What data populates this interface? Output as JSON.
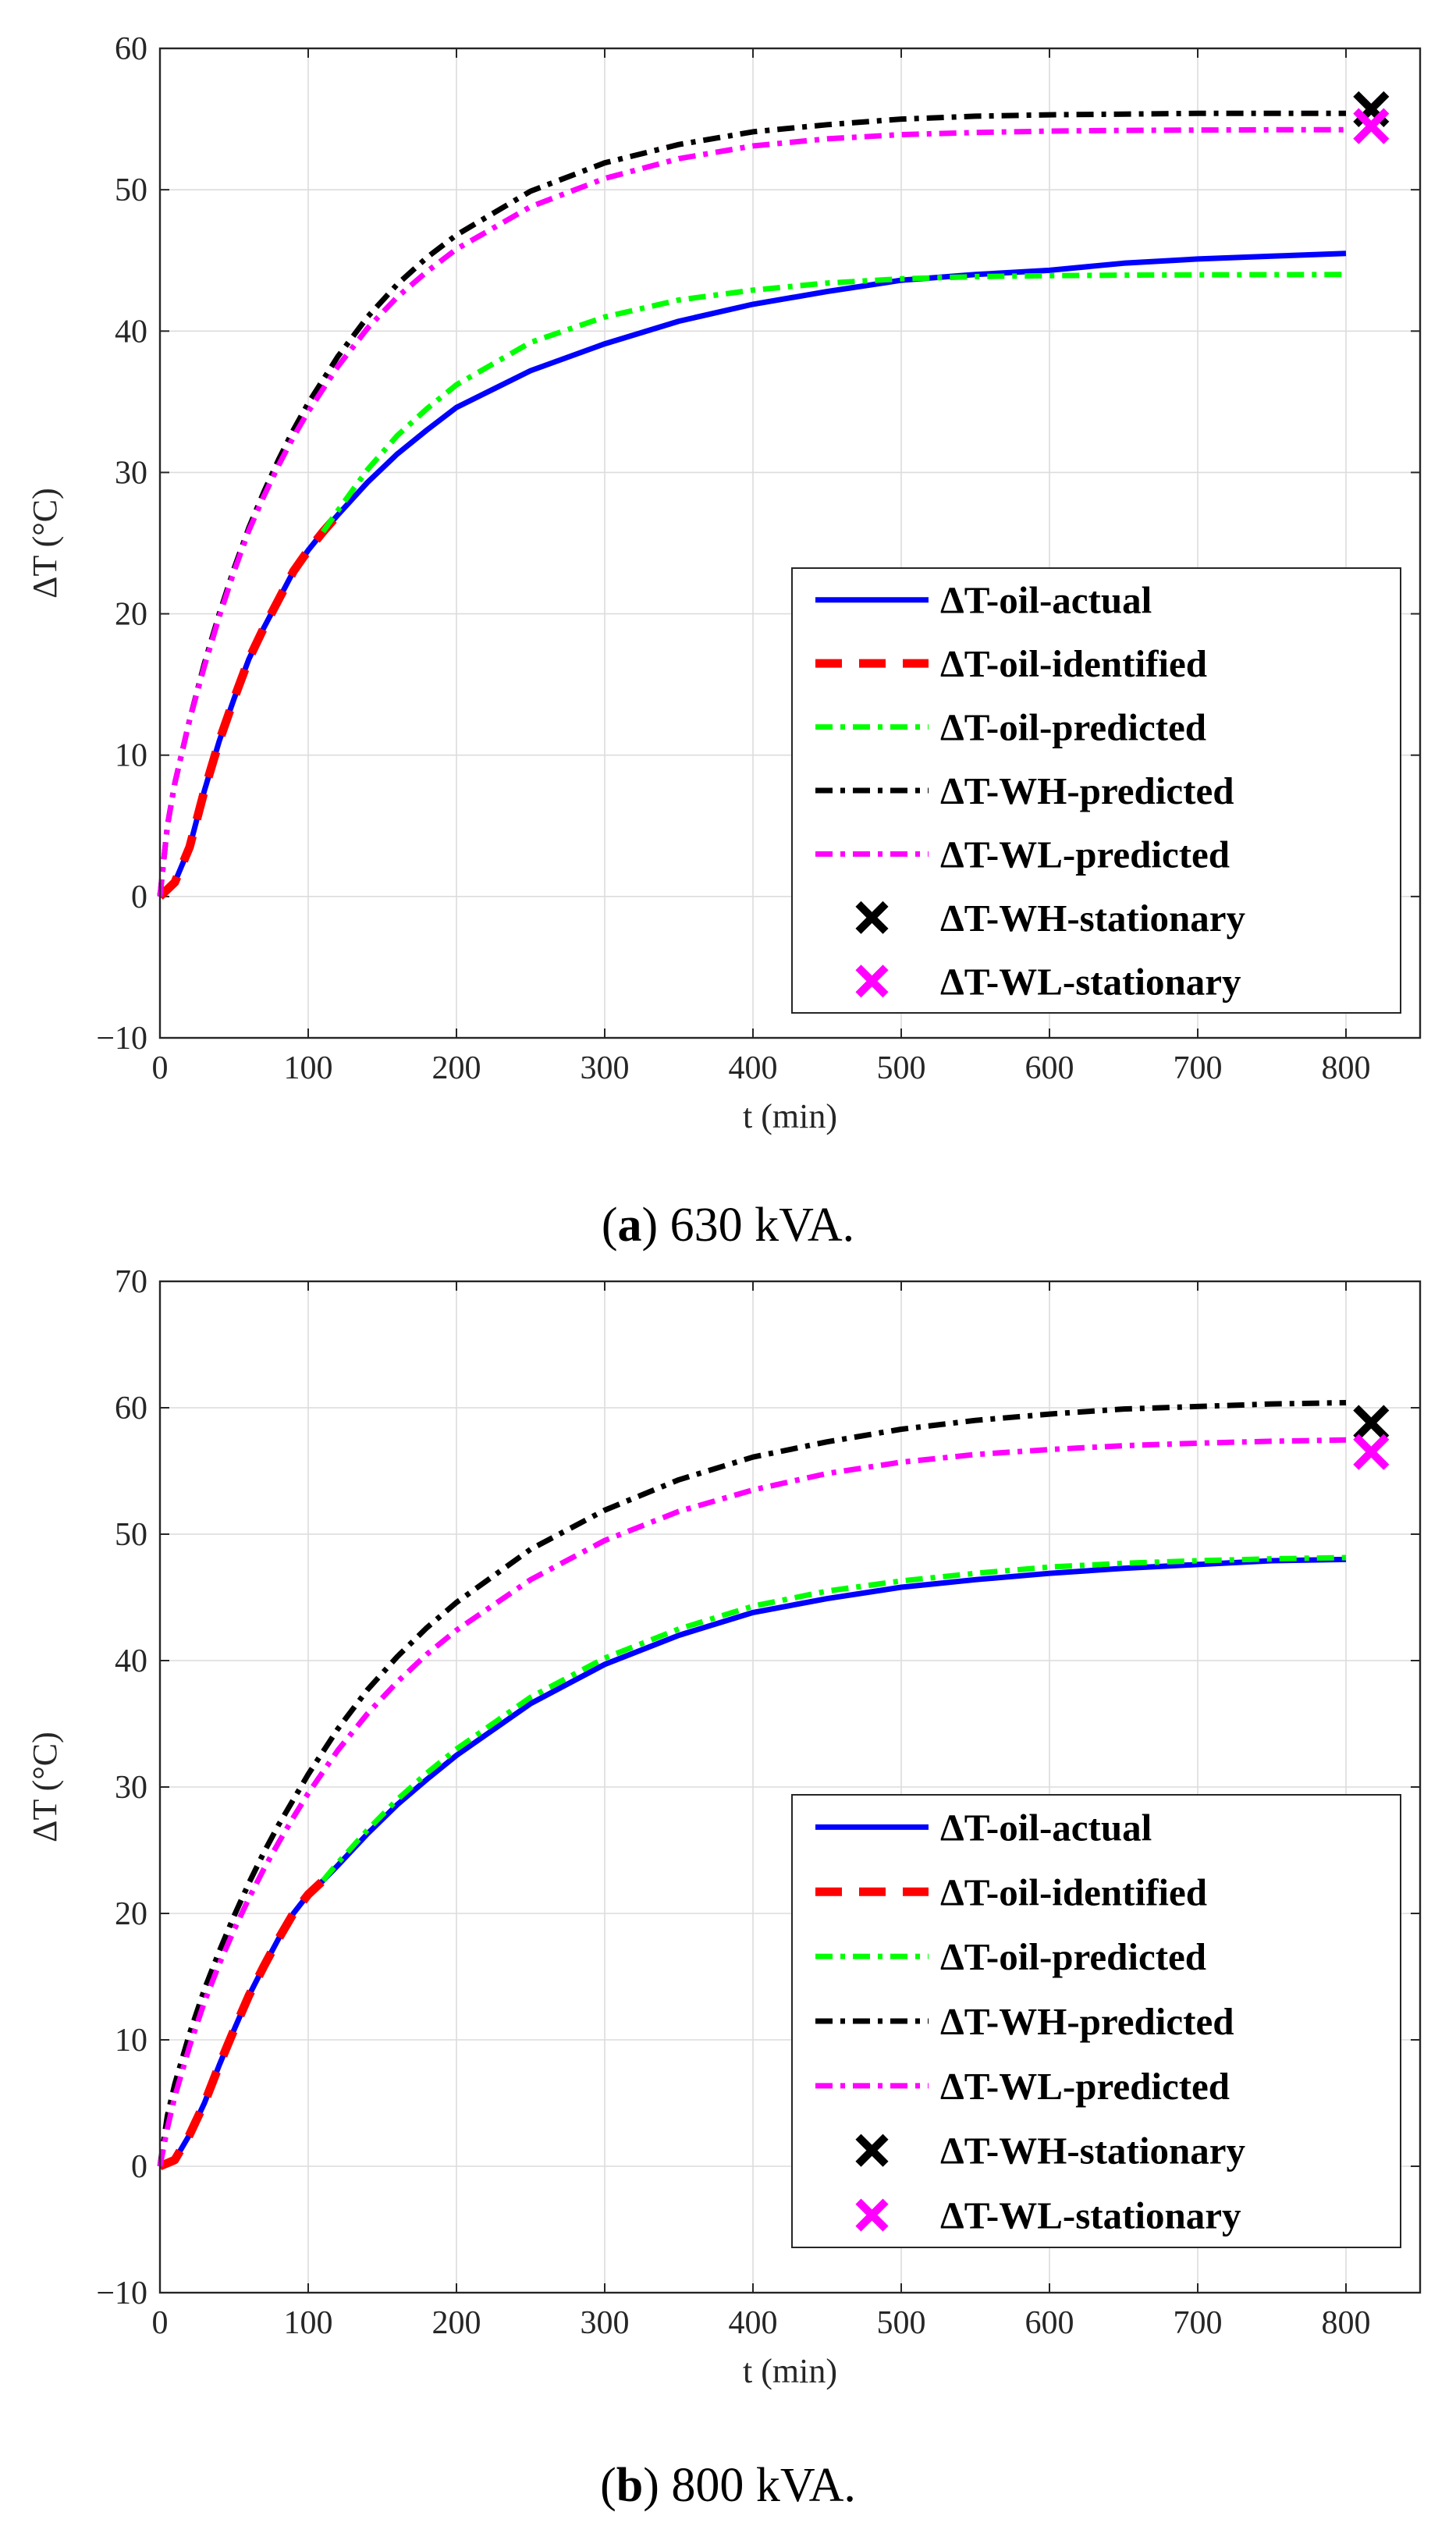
{
  "chart_data": [
    {
      "type": "line",
      "caption_letter": "a",
      "caption_text": "630 kVA.",
      "xlabel": "t (min)",
      "ylabel": "ΔT (°C)",
      "xlim": [
        0,
        850
      ],
      "ylim": [
        -10,
        60
      ],
      "xticks": [
        0,
        100,
        200,
        300,
        400,
        500,
        600,
        700,
        800
      ],
      "yticks": [
        -10,
        0,
        10,
        20,
        30,
        40,
        50,
        60
      ],
      "grid": true,
      "legend_position": "bottom-right",
      "series": [
        {
          "name": "ΔT-oil-actual",
          "color": "#0000ff",
          "style": "solid",
          "x": [
            0,
            10,
            20,
            30,
            40,
            50,
            60,
            70,
            80,
            90,
            100,
            110,
            120,
            140,
            160,
            180,
            200,
            250,
            300,
            350,
            400,
            450,
            500,
            550,
            600,
            650,
            700,
            750,
            800
          ],
          "y": [
            0,
            1,
            3.5,
            7.5,
            11,
            14,
            16.8,
            19,
            21,
            23,
            24.5,
            25.8,
            27,
            29.3,
            31.3,
            33,
            34.6,
            37.2,
            39.1,
            40.7,
            41.9,
            42.8,
            43.6,
            44,
            44.3,
            44.8,
            45.1,
            45.3,
            45.5
          ]
        },
        {
          "name": "ΔT-oil-identified",
          "color": "#ff0000",
          "style": "dashed",
          "x": [
            0,
            10,
            20,
            30,
            40,
            50,
            60,
            70,
            80,
            90,
            100,
            110,
            120
          ],
          "y": [
            0,
            1,
            3.5,
            7.5,
            11,
            14,
            16.8,
            19,
            21,
            23,
            24.5,
            25.8,
            27
          ]
        },
        {
          "name": "ΔT-oil-predicted",
          "color": "#00ff00",
          "style": "dashdot",
          "x": [
            110,
            120,
            140,
            160,
            180,
            200,
            250,
            300,
            350,
            400,
            450,
            500,
            550,
            600,
            650,
            700,
            750,
            800
          ],
          "y": [
            25.8,
            27.3,
            30.2,
            32.6,
            34.5,
            36.2,
            39.2,
            41,
            42.2,
            42.9,
            43.4,
            43.7,
            43.85,
            43.92,
            43.96,
            43.98,
            43.99,
            44
          ]
        },
        {
          "name": "ΔT-WH-predicted",
          "color": "#000000",
          "style": "dashdot",
          "x": [
            0,
            5,
            10,
            20,
            30,
            40,
            50,
            60,
            70,
            80,
            90,
            100,
            120,
            140,
            160,
            180,
            200,
            250,
            300,
            350,
            400,
            450,
            500,
            550,
            600,
            650,
            700,
            750,
            800
          ],
          "y": [
            0,
            5,
            8,
            12.5,
            16.5,
            20,
            23.2,
            26.1,
            28.6,
            30.9,
            33,
            34.9,
            38.2,
            41,
            43.3,
            45.2,
            46.8,
            49.9,
            51.9,
            53.2,
            54.1,
            54.6,
            55,
            55.2,
            55.3,
            55.35,
            55.4,
            55.4,
            55.4
          ]
        },
        {
          "name": "ΔT-WL-predicted",
          "color": "#ff00ff",
          "style": "dashdot",
          "x": [
            0,
            5,
            10,
            20,
            30,
            40,
            50,
            60,
            70,
            80,
            90,
            100,
            120,
            140,
            160,
            180,
            200,
            250,
            300,
            350,
            400,
            450,
            500,
            550,
            600,
            650,
            700,
            750,
            800
          ],
          "y": [
            0,
            5,
            8,
            12.5,
            16.3,
            19.8,
            23,
            25.9,
            28.3,
            30.5,
            32.5,
            34.3,
            37.5,
            40.2,
            42.4,
            44.2,
            45.8,
            48.8,
            50.8,
            52.2,
            53.1,
            53.6,
            53.9,
            54.05,
            54.15,
            54.2,
            54.22,
            54.24,
            54.25
          ]
        },
        {
          "name": "ΔT-WH-stationary",
          "color": "#000000",
          "style": "marker-x",
          "x": [
            817
          ],
          "y": [
            55.7
          ]
        },
        {
          "name": "ΔT-WL-stationary",
          "color": "#ff00ff",
          "style": "marker-x",
          "x": [
            817
          ],
          "y": [
            54.5
          ]
        }
      ]
    },
    {
      "type": "line",
      "caption_letter": "b",
      "caption_text": "800 kVA.",
      "xlabel": "t (min)",
      "ylabel": "ΔT (°C)",
      "xlim": [
        0,
        850
      ],
      "ylim": [
        -10,
        70
      ],
      "xticks": [
        0,
        100,
        200,
        300,
        400,
        500,
        600,
        700,
        800
      ],
      "yticks": [
        -10,
        0,
        10,
        20,
        30,
        40,
        50,
        60,
        70
      ],
      "grid": true,
      "legend_position": "bottom-right",
      "series": [
        {
          "name": "ΔT-oil-actual",
          "color": "#0000ff",
          "style": "solid",
          "x": [
            0,
            10,
            20,
            30,
            40,
            50,
            60,
            70,
            80,
            90,
            100,
            110,
            120,
            140,
            160,
            180,
            200,
            250,
            300,
            350,
            400,
            450,
            500,
            550,
            600,
            650,
            700,
            750,
            800
          ],
          "y": [
            0,
            0.5,
            2.5,
            5,
            8,
            10.8,
            13.5,
            15.8,
            18,
            20,
            21.5,
            22.6,
            23.8,
            26.3,
            28.6,
            30.6,
            32.5,
            36.6,
            39.7,
            42,
            43.8,
            44.9,
            45.8,
            46.4,
            46.9,
            47.3,
            47.6,
            47.9,
            48
          ]
        },
        {
          "name": "ΔT-oil-identified",
          "color": "#ff0000",
          "style": "dashed",
          "x": [
            0,
            10,
            20,
            30,
            40,
            50,
            60,
            70,
            80,
            90,
            100,
            110
          ],
          "y": [
            0,
            0.5,
            2.5,
            5,
            8,
            10.8,
            13.5,
            15.8,
            18,
            20,
            21.5,
            22.6
          ]
        },
        {
          "name": "ΔT-oil-predicted",
          "color": "#00ff00",
          "style": "dashdot",
          "x": [
            110,
            120,
            140,
            160,
            180,
            200,
            250,
            300,
            350,
            400,
            450,
            500,
            550,
            600,
            650,
            700,
            750,
            800
          ],
          "y": [
            22.6,
            24,
            26.6,
            29,
            31.1,
            33,
            37.1,
            40.2,
            42.5,
            44.3,
            45.5,
            46.3,
            46.9,
            47.4,
            47.7,
            47.9,
            48.05,
            48.15
          ]
        },
        {
          "name": "ΔT-WH-predicted",
          "color": "#000000",
          "style": "dashdot",
          "x": [
            0,
            5,
            10,
            20,
            30,
            40,
            50,
            60,
            70,
            80,
            90,
            100,
            120,
            140,
            160,
            180,
            200,
            250,
            300,
            350,
            400,
            450,
            500,
            550,
            600,
            650,
            700,
            750,
            800
          ],
          "y": [
            0,
            4,
            6.5,
            10.5,
            14,
            17,
            19.8,
            22.4,
            24.8,
            27,
            29,
            31,
            34.6,
            37.7,
            40.3,
            42.6,
            44.6,
            48.8,
            51.9,
            54.3,
            56.1,
            57.3,
            58.3,
            59,
            59.5,
            59.9,
            60.1,
            60.3,
            60.4
          ]
        },
        {
          "name": "ΔT-WL-predicted",
          "color": "#ff00ff",
          "style": "dashdot",
          "x": [
            0,
            5,
            10,
            20,
            30,
            40,
            50,
            60,
            70,
            80,
            90,
            100,
            120,
            140,
            160,
            180,
            200,
            250,
            300,
            350,
            400,
            450,
            500,
            550,
            600,
            650,
            700,
            750,
            800
          ],
          "y": [
            0,
            3,
            5.5,
            9.5,
            13,
            16,
            18.7,
            21.2,
            23.5,
            25.6,
            27.6,
            29.5,
            32.9,
            35.8,
            38.3,
            40.5,
            42.4,
            46.4,
            49.5,
            51.8,
            53.5,
            54.8,
            55.7,
            56.3,
            56.7,
            57,
            57.2,
            57.35,
            57.45
          ]
        },
        {
          "name": "ΔT-WH-stationary",
          "color": "#000000",
          "style": "marker-x",
          "x": [
            817
          ],
          "y": [
            58.8
          ]
        },
        {
          "name": "ΔT-WL-stationary",
          "color": "#ff00ff",
          "style": "marker-x",
          "x": [
            817
          ],
          "y": [
            56.5
          ]
        }
      ]
    }
  ]
}
